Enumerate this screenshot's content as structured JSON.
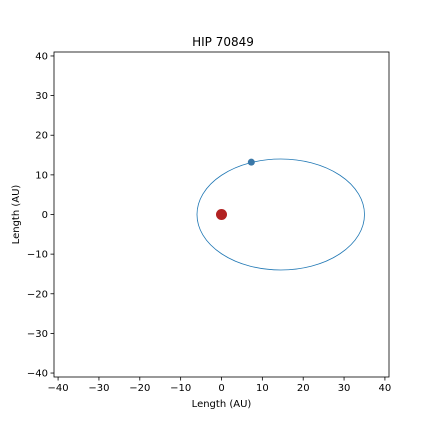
{
  "chart_data": {
    "type": "scatter",
    "title": "HIP 70849",
    "xlabel": "Length (AU)",
    "ylabel": "Length (AU)",
    "xlim": [
      -41,
      41
    ],
    "ylim": [
      -41,
      41
    ],
    "xticks": [
      -40,
      -30,
      -20,
      -10,
      0,
      10,
      20,
      30,
      40
    ],
    "yticks": [
      -40,
      -30,
      -20,
      -10,
      0,
      10,
      20,
      30,
      40
    ],
    "xtick_labels": [
      "−40",
      "−30",
      "−20",
      "−10",
      "0",
      "10",
      "20",
      "30",
      "40"
    ],
    "ytick_labels": [
      "−40",
      "−30",
      "−20",
      "−10",
      "0",
      "10",
      "20",
      "30",
      "40"
    ],
    "grid": false,
    "orbit": {
      "center": [
        14.5,
        0
      ],
      "semi_axis_x": 20.5,
      "semi_axis_y": 14,
      "color": "#1f77b4"
    },
    "star": {
      "x": 0,
      "y": 0,
      "color": "#b22222"
    },
    "planet": {
      "x": 7.3,
      "y": 13.2,
      "color": "#3a78a8"
    }
  }
}
